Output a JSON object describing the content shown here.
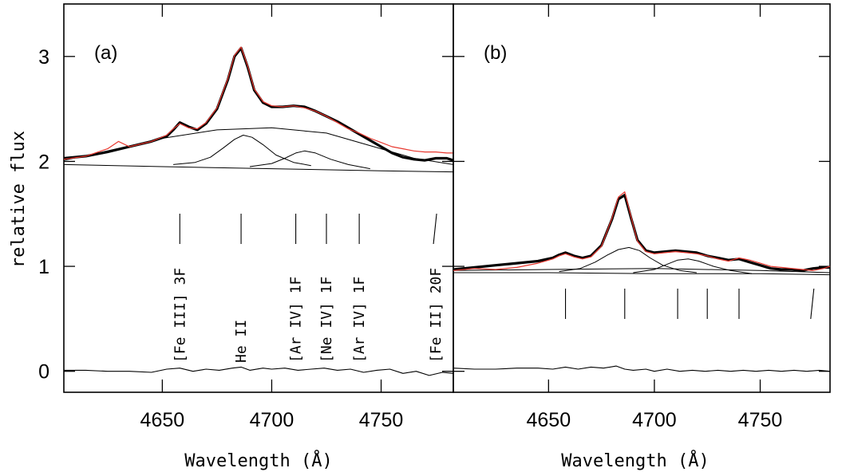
{
  "chart_data": {
    "type": "line",
    "ylabel": "relative flux",
    "ylim": [
      -0.2,
      3.5
    ],
    "yticks": [
      0,
      1,
      2,
      3
    ],
    "colors": {
      "data": "#000000",
      "fit": "#e8382f",
      "component": "#000000"
    },
    "panels": [
      {
        "label": "(a)",
        "xlabel": "Wavelength (Å)",
        "xlim": [
          4605,
          4783
        ],
        "xticks": [
          4650,
          4700,
          4750
        ],
        "line_ids": [
          {
            "label": "[Fe III] 3F",
            "x": 4658
          },
          {
            "label": "He II",
            "x": 4686
          },
          {
            "label": "[Ar IV] 1F",
            "x": 4711
          },
          {
            "label": "[Ne IV] 1F",
            "x": 4725
          },
          {
            "label": "[Ar IV] 1F",
            "x": 4740
          },
          {
            "label": "[Fe II] 20F",
            "x": 4775
          }
        ],
        "series": [
          {
            "role": "data",
            "x": [
              4605,
              4615,
              4625,
              4635,
              4645,
              4652,
              4655,
              4658,
              4662,
              4666,
              4670,
              4675,
              4680,
              4683,
              4686,
              4689,
              4692,
              4696,
              4700,
              4705,
              4710,
              4715,
              4720,
              4725,
              4730,
              4735,
              4740,
              4745,
              4750,
              4755,
              4760,
              4765,
              4770,
              4775,
              4780,
              4783
            ],
            "y": [
              2.03,
              2.05,
              2.09,
              2.14,
              2.19,
              2.24,
              2.3,
              2.37,
              2.33,
              2.3,
              2.36,
              2.5,
              2.78,
              3.0,
              3.08,
              2.9,
              2.68,
              2.56,
              2.52,
              2.52,
              2.53,
              2.52,
              2.48,
              2.43,
              2.38,
              2.32,
              2.26,
              2.2,
              2.14,
              2.08,
              2.04,
              2.02,
              2.01,
              2.03,
              2.03,
              2.01
            ]
          },
          {
            "role": "fit",
            "x": [
              4605,
              4615,
              4625,
              4630,
              4635,
              4645,
              4652,
              4655,
              4658,
              4662,
              4666,
              4670,
              4675,
              4680,
              4683,
              4686,
              4689,
              4692,
              4696,
              4700,
              4705,
              4710,
              4715,
              4720,
              4725,
              4730,
              4735,
              4740,
              4745,
              4750,
              4755,
              4760,
              4765,
              4770,
              4775,
              4780,
              4783
            ],
            "y": [
              2.02,
              2.05,
              2.12,
              2.19,
              2.14,
              2.19,
              2.25,
              2.31,
              2.36,
              2.32,
              2.31,
              2.37,
              2.51,
              2.79,
              3.01,
              3.09,
              2.91,
              2.69,
              2.57,
              2.53,
              2.52,
              2.53,
              2.51,
              2.48,
              2.43,
              2.37,
              2.31,
              2.27,
              2.22,
              2.18,
              2.14,
              2.12,
              2.1,
              2.09,
              2.09,
              2.08,
              2.08
            ]
          },
          {
            "role": "component",
            "x": [
              4605,
              4625,
              4650,
              4675,
              4700,
              4725,
              4750,
              4765,
              4783
            ],
            "y": [
              2.01,
              2.1,
              2.22,
              2.3,
              2.32,
              2.27,
              2.12,
              2.03,
              1.97
            ]
          },
          {
            "role": "component",
            "x": [
              4655,
              4665,
              4672,
              4678,
              4683,
              4687,
              4691,
              4696,
              4702,
              4710,
              4718
            ],
            "y": [
              1.97,
              1.99,
              2.04,
              2.13,
              2.21,
              2.25,
              2.23,
              2.16,
              2.06,
              1.99,
              1.96
            ]
          },
          {
            "role": "component",
            "x": [
              4690,
              4700,
              4706,
              4711,
              4715,
              4720,
              4727,
              4735,
              4745
            ],
            "y": [
              1.95,
              1.98,
              2.03,
              2.08,
              2.1,
              2.08,
              2.02,
              1.97,
              1.93
            ]
          },
          {
            "role": "component",
            "x": [
              4605,
              4650,
              4700,
              4750,
              4783
            ],
            "y": [
              1.97,
              1.95,
              1.93,
              1.91,
              1.9
            ]
          },
          {
            "role": "residual",
            "x": [
              4605,
              4615,
              4625,
              4635,
              4645,
              4652,
              4658,
              4664,
              4670,
              4676,
              4682,
              4686,
              4690,
              4696,
              4700,
              4706,
              4712,
              4718,
              4724,
              4730,
              4736,
              4742,
              4748,
              4754,
              4760,
              4766,
              4772,
              4778,
              4783
            ],
            "y": [
              0.01,
              0.01,
              0.0,
              0.0,
              -0.01,
              0.02,
              0.03,
              0.0,
              0.02,
              0.01,
              0.03,
              0.04,
              0.01,
              0.03,
              0.02,
              0.03,
              0.01,
              0.02,
              0.03,
              0.01,
              0.02,
              -0.01,
              0.01,
              0.02,
              -0.02,
              0.0,
              -0.04,
              -0.01,
              -0.02
            ]
          }
        ]
      },
      {
        "label": "(b)",
        "xlabel": "Wavelength (Å)",
        "xlim": [
          4605,
          4783
        ],
        "xticks": [
          4650,
          4700,
          4750
        ],
        "line_ids": [
          {
            "x": 4658
          },
          {
            "x": 4686
          },
          {
            "x": 4711
          },
          {
            "x": 4725
          },
          {
            "x": 4740
          },
          {
            "x": 4775
          }
        ],
        "series": [
          {
            "role": "data",
            "x": [
              4605,
              4615,
              4625,
              4635,
              4645,
              4652,
              4655,
              4658,
              4662,
              4666,
              4670,
              4675,
              4680,
              4683,
              4686,
              4689,
              4692,
              4696,
              4700,
              4705,
              4710,
              4715,
              4720,
              4725,
              4730,
              4735,
              4740,
              4745,
              4750,
              4755,
              4760,
              4765,
              4770,
              4775,
              4780,
              4783
            ],
            "y": [
              0.97,
              0.99,
              1.01,
              1.03,
              1.05,
              1.08,
              1.11,
              1.13,
              1.1,
              1.08,
              1.1,
              1.2,
              1.45,
              1.64,
              1.68,
              1.46,
              1.25,
              1.15,
              1.13,
              1.14,
              1.15,
              1.14,
              1.13,
              1.1,
              1.08,
              1.06,
              1.07,
              1.04,
              1.01,
              0.98,
              0.97,
              0.97,
              0.96,
              0.98,
              0.99,
              0.99
            ]
          },
          {
            "role": "fit",
            "x": [
              4605,
              4615,
              4625,
              4635,
              4645,
              4652,
              4655,
              4658,
              4662,
              4666,
              4670,
              4675,
              4680,
              4683,
              4686,
              4689,
              4692,
              4696,
              4700,
              4705,
              4710,
              4715,
              4720,
              4725,
              4730,
              4735,
              4740,
              4745,
              4750,
              4755,
              4760,
              4765,
              4770,
              4775,
              4780,
              4783
            ],
            "y": [
              0.96,
              0.98,
              0.97,
              0.99,
              1.03,
              1.07,
              1.1,
              1.12,
              1.09,
              1.07,
              1.09,
              1.19,
              1.46,
              1.66,
              1.71,
              1.47,
              1.24,
              1.14,
              1.12,
              1.13,
              1.14,
              1.13,
              1.12,
              1.1,
              1.07,
              1.05,
              1.08,
              1.06,
              1.03,
              1.0,
              0.99,
              0.98,
              0.97,
              0.96,
              0.98,
              1.0
            ]
          },
          {
            "role": "component",
            "x": [
              4605,
              4650,
              4700,
              4750,
              4783
            ],
            "y": [
              0.96,
              0.97,
              0.98,
              0.96,
              0.94
            ]
          },
          {
            "role": "component",
            "x": [
              4655,
              4665,
              4672,
              4678,
              4683,
              4688,
              4693,
              4698,
              4704,
              4712,
              4720
            ],
            "y": [
              0.95,
              0.98,
              1.04,
              1.11,
              1.16,
              1.18,
              1.15,
              1.08,
              1.01,
              0.96,
              0.94
            ]
          },
          {
            "role": "component",
            "x": [
              4690,
              4700,
              4706,
              4711,
              4716,
              4721,
              4728,
              4736,
              4746
            ],
            "y": [
              0.94,
              0.97,
              1.02,
              1.06,
              1.07,
              1.05,
              1.0,
              0.96,
              0.93
            ]
          },
          {
            "role": "component",
            "x": [
              4605,
              4650,
              4700,
              4750,
              4783
            ],
            "y": [
              0.94,
              0.94,
              0.93,
              0.93,
              0.92
            ]
          },
          {
            "role": "residual",
            "x": [
              4605,
              4615,
              4625,
              4635,
              4645,
              4652,
              4658,
              4664,
              4670,
              4676,
              4682,
              4686,
              4690,
              4696,
              4700,
              4706,
              4712,
              4718,
              4724,
              4730,
              4736,
              4742,
              4748,
              4754,
              4760,
              4766,
              4772,
              4778,
              4783
            ],
            "y": [
              0.03,
              0.02,
              0.02,
              0.03,
              0.03,
              0.02,
              0.04,
              0.02,
              0.04,
              0.03,
              0.05,
              0.02,
              0.01,
              0.02,
              0.0,
              0.02,
              0.0,
              0.01,
              0.0,
              0.01,
              0.0,
              0.01,
              0.0,
              0.01,
              0.0,
              0.01,
              0.0,
              0.01,
              0.0
            ]
          }
        ]
      }
    ]
  }
}
